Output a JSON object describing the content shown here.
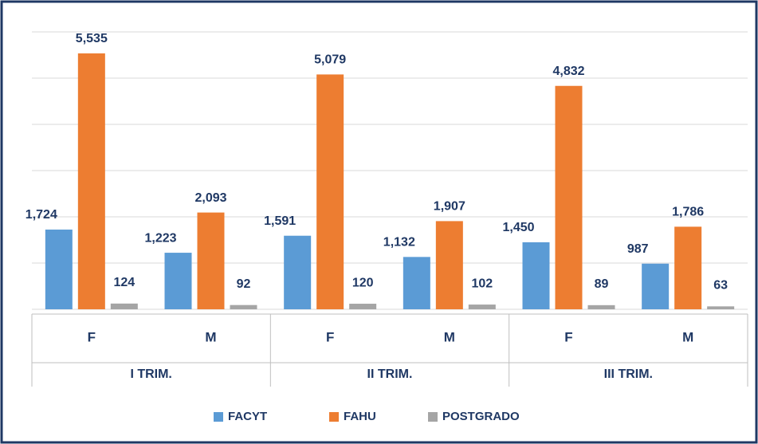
{
  "chart_data": {
    "type": "bar",
    "categories": [
      "F",
      "M",
      "F",
      "M",
      "F",
      "M"
    ],
    "groups": [
      "I TRIM.",
      "II TRIM.",
      "III TRIM."
    ],
    "series": [
      {
        "name": "FACYT",
        "color": "#5b9bd5",
        "values": [
          1724,
          1223,
          1591,
          1132,
          1450,
          987
        ],
        "value_labels": [
          "1,724",
          "1,223",
          "1,591",
          "1,132",
          "1,450",
          "987"
        ]
      },
      {
        "name": "FAHU",
        "color": "#ed7d31",
        "values": [
          5535,
          2093,
          5079,
          1907,
          4832,
          1786
        ],
        "value_labels": [
          "5,535",
          "2,093",
          "5,079",
          "1,907",
          "4,832",
          "1,786"
        ]
      },
      {
        "name": "POSTGRADO",
        "color": "#a5a5a5",
        "values": [
          124,
          92,
          120,
          102,
          89,
          63
        ],
        "value_labels": [
          "124",
          "92",
          "120",
          "102",
          "89",
          "63"
        ]
      }
    ],
    "ylim": [
      0,
      6000
    ],
    "yticks": [
      0,
      1000,
      2000,
      3000,
      4000,
      5000,
      6000
    ],
    "grid": true,
    "legend": "bottom"
  }
}
